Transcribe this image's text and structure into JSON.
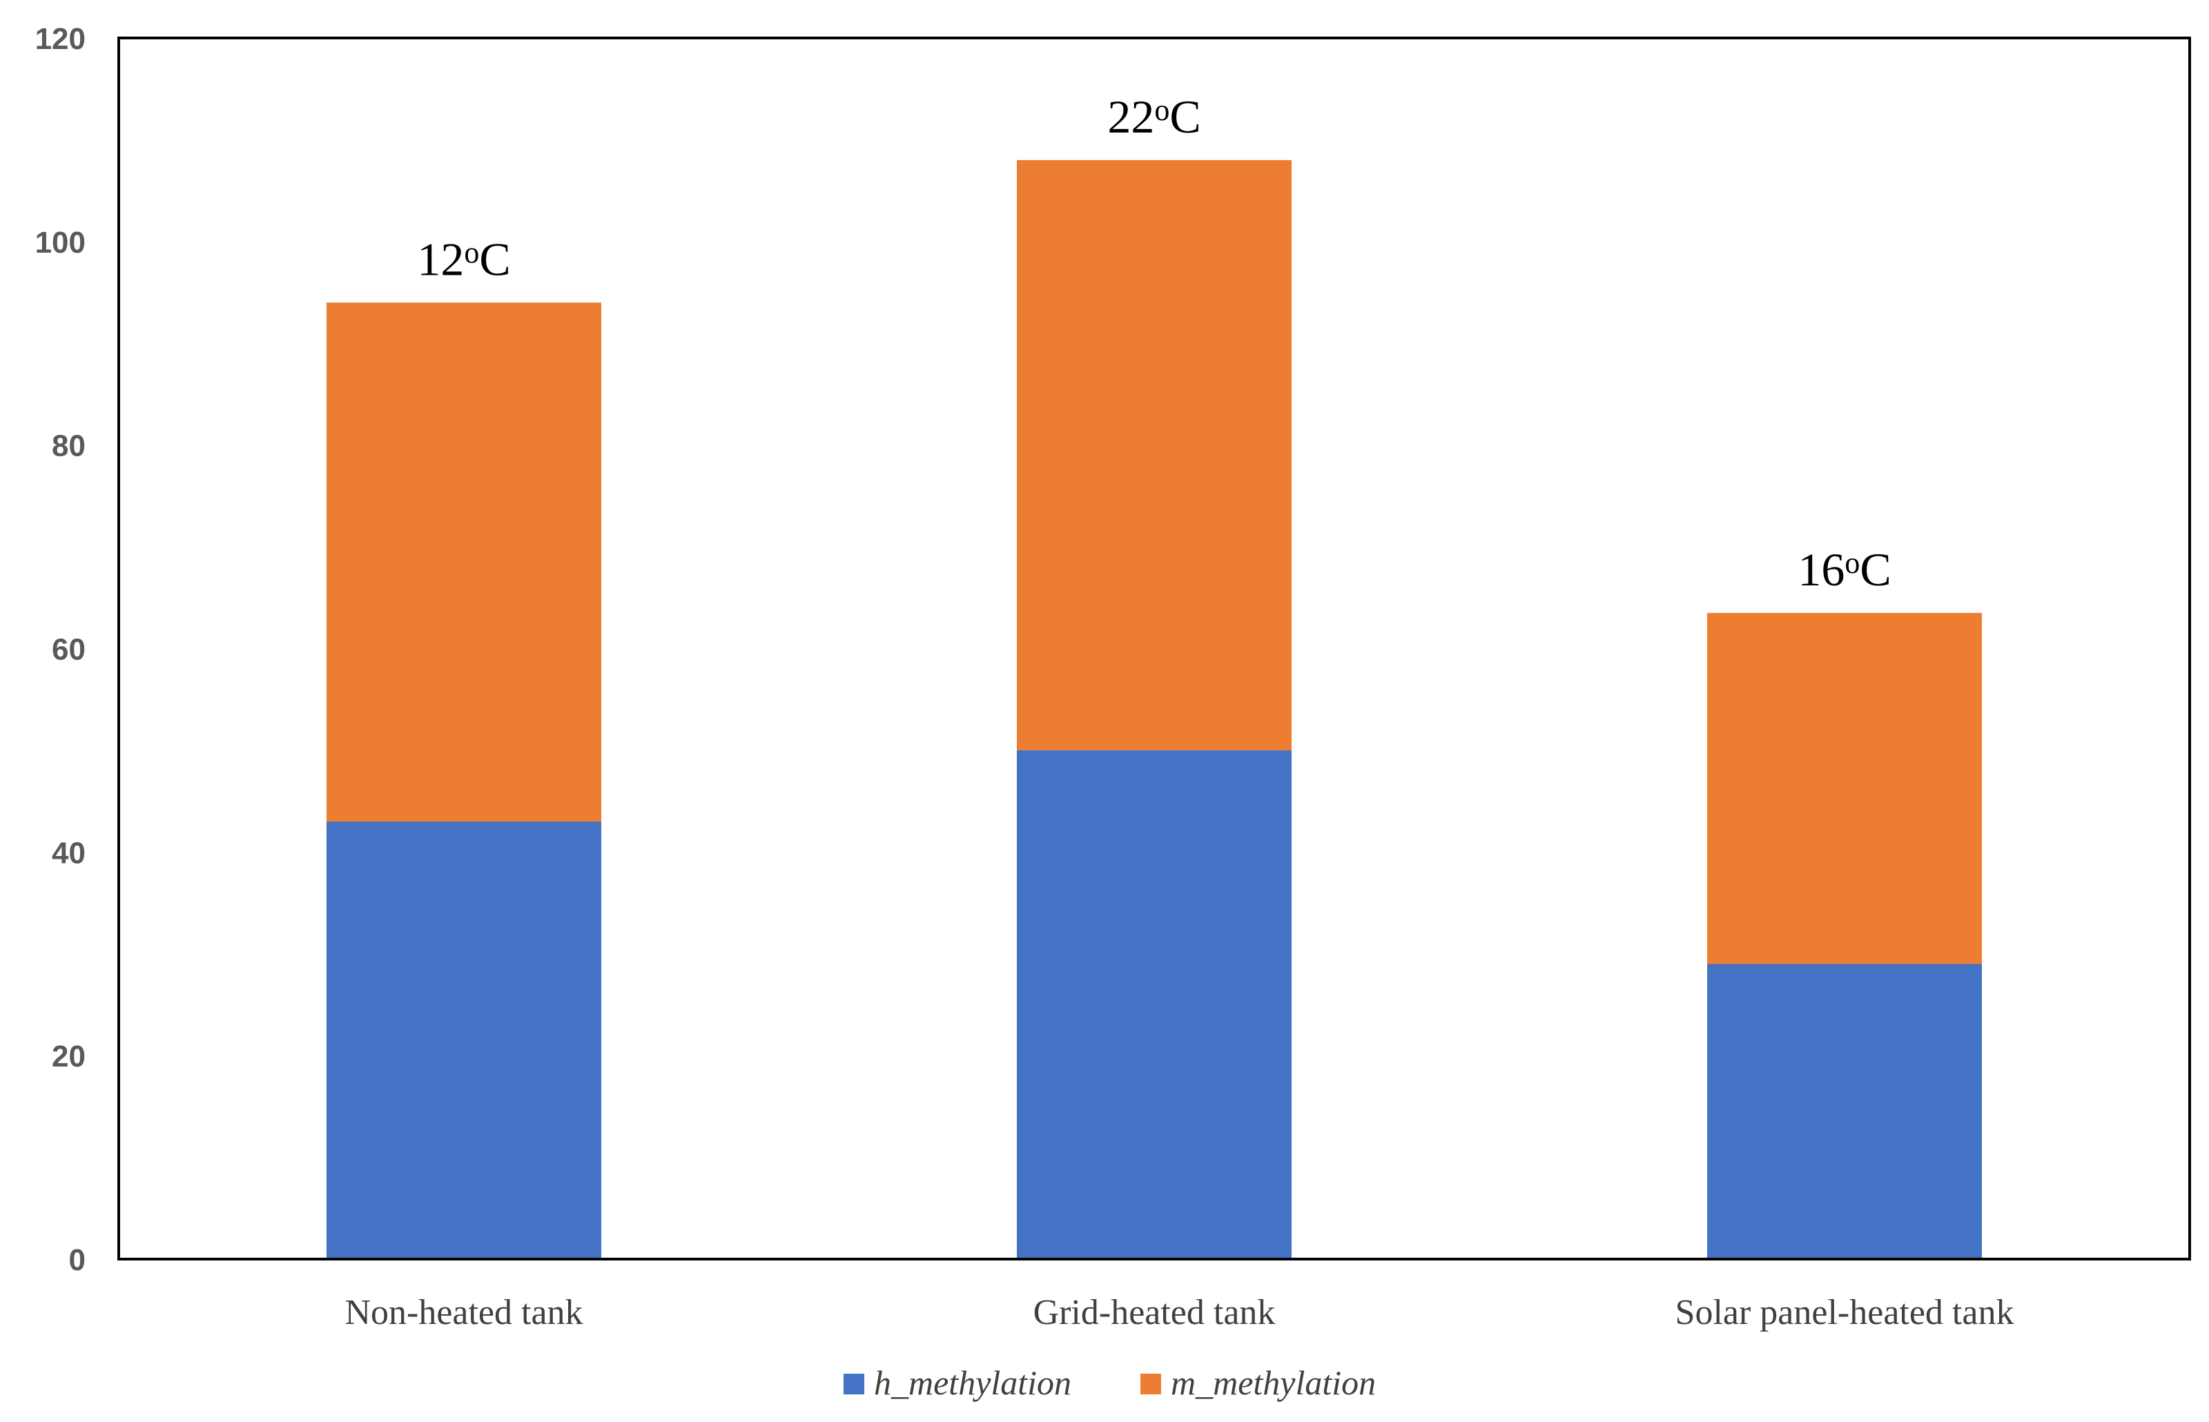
{
  "chart_data": {
    "type": "bar",
    "stacked": true,
    "categories": [
      "Non-heated tank",
      "Grid-heated tank",
      "Solar panel-heated tank"
    ],
    "series": [
      {
        "name": "h_methylation",
        "values": [
          43,
          50,
          29
        ]
      },
      {
        "name": "m_methylation",
        "values": [
          51,
          58,
          34.5
        ]
      }
    ],
    "bar_annotations": [
      {
        "base": "12",
        "sup": "o",
        "unit": "C"
      },
      {
        "base": "22",
        "sup": "o",
        "unit": "C"
      },
      {
        "base": "16",
        "sup": "o",
        "unit": "C"
      }
    ],
    "yticks": [
      "0",
      "20",
      "40",
      "60",
      "80",
      "100",
      "120"
    ],
    "ylim": [
      0,
      120
    ],
    "title": "",
    "xlabel": "",
    "ylabel": "",
    "grid": false,
    "legend_position": "bottom-center"
  },
  "colors": {
    "series": [
      "#4472C4",
      "#ED7D31"
    ],
    "axis": "#000000",
    "tick_text": "#595959",
    "category_text": "#404040"
  }
}
